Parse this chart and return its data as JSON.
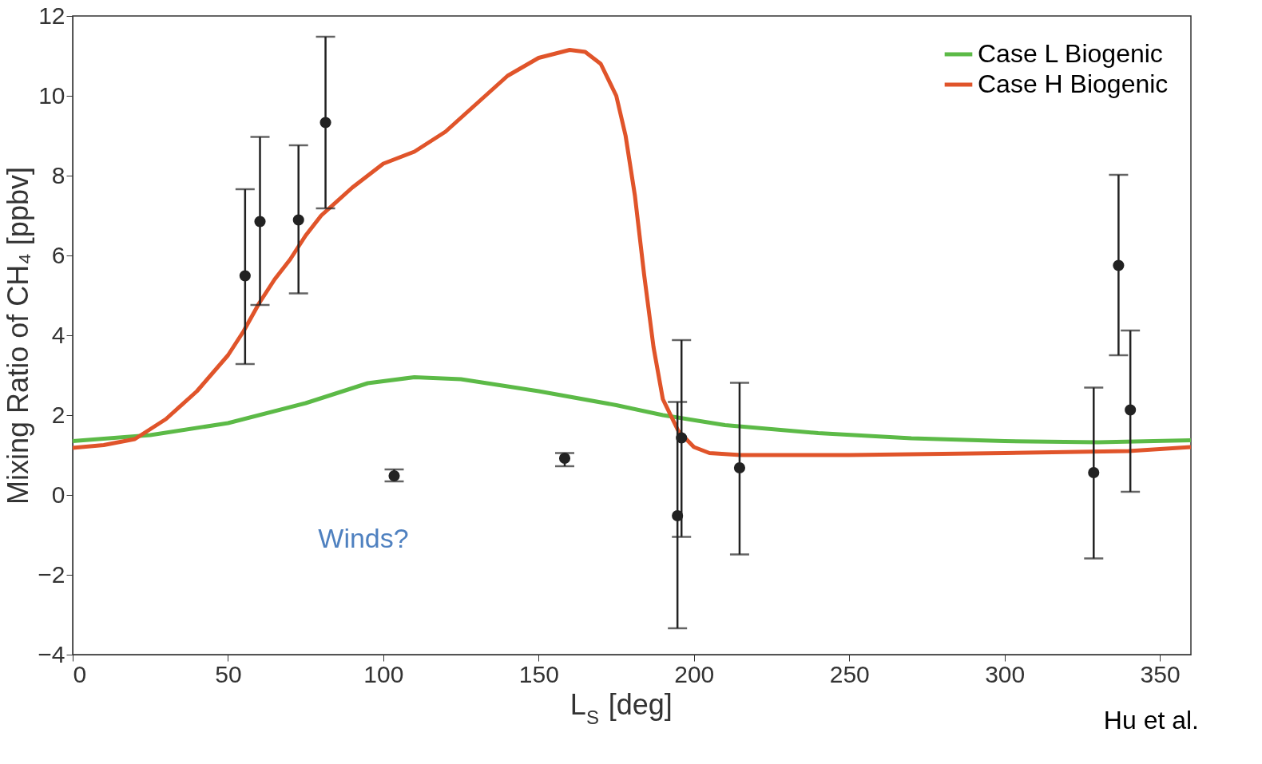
{
  "chart_data": {
    "type": "line",
    "xlabel": "L$_{S}$ [deg]",
    "ylabel": "Mixing Ratio of CH₄ [ppbv]",
    "xlim": [
      0,
      360
    ],
    "xticks": [
      0,
      50,
      100,
      150,
      200,
      250,
      300,
      350
    ],
    "ylim": [
      -4,
      12
    ],
    "yticks": [
      -4,
      -2,
      0,
      2,
      4,
      6,
      8,
      10,
      12
    ],
    "grid": false,
    "legend": "top right",
    "series": [
      {
        "name": "Case L Biogenic",
        "color": "#5cba47",
        "line_style": "solid",
        "x": [
          0,
          25,
          50,
          75,
          95,
          110,
          125,
          150,
          175,
          190,
          210,
          240,
          270,
          300,
          330,
          360
        ],
        "values": [
          1.35,
          1.5,
          1.8,
          2.3,
          2.8,
          2.95,
          2.9,
          2.6,
          2.25,
          2.0,
          1.75,
          1.55,
          1.42,
          1.35,
          1.32,
          1.37
        ]
      },
      {
        "name": "Case H Biogenic",
        "color": "#e0542a",
        "line_style": "solid",
        "x": [
          0,
          10,
          20,
          30,
          40,
          50,
          55,
          60,
          65,
          70,
          75,
          80,
          90,
          100,
          110,
          120,
          130,
          140,
          150,
          160,
          165,
          170,
          175,
          178,
          181,
          184,
          187,
          190,
          195,
          200,
          205,
          215,
          250,
          300,
          340,
          360
        ],
        "values": [
          1.18,
          1.25,
          1.4,
          1.9,
          2.6,
          3.5,
          4.1,
          4.8,
          5.4,
          5.9,
          6.5,
          7.0,
          7.7,
          8.3,
          8.6,
          9.1,
          9.8,
          10.5,
          10.95,
          11.15,
          11.1,
          10.8,
          10.0,
          9.0,
          7.5,
          5.5,
          3.7,
          2.4,
          1.6,
          1.2,
          1.05,
          1.0,
          1.0,
          1.05,
          1.1,
          1.2
        ]
      },
      {
        "color": "#222222",
        "type": "scatter",
        "marker": "circle",
        "x": [
          55.5,
          60.3,
          72.7,
          81.4,
          103.5,
          158.4,
          194.7,
          196,
          214.7,
          328.7,
          336.7,
          340.5
        ],
        "values": [
          5.49,
          6.85,
          6.89,
          9.33,
          0.48,
          0.92,
          -0.52,
          1.43,
          0.68,
          0.56,
          5.75,
          2.13
        ],
        "errors": [
          [
            3.28,
            7.66
          ],
          [
            4.76,
            8.97
          ],
          [
            5.05,
            8.76
          ],
          [
            7.18,
            11.48
          ],
          [
            0.34,
            0.64
          ],
          [
            0.72,
            1.05
          ],
          [
            -3.34,
            2.33
          ],
          [
            -1.05,
            3.88
          ],
          [
            -1.49,
            2.81
          ],
          [
            -1.59,
            2.69
          ],
          [
            3.5,
            8.02
          ],
          [
            0.08,
            4.12
          ]
        ]
      }
    ],
    "annotations": [
      "Winds?",
      "Hu et al."
    ]
  }
}
